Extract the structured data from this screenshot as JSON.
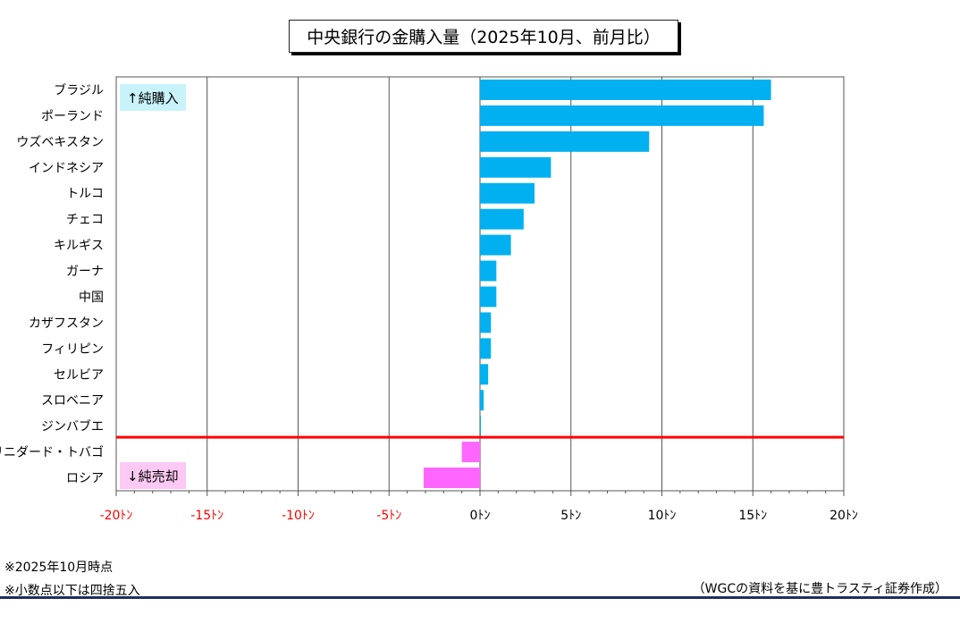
{
  "title": "中央銀行の金購入量（2025年10月、前月比）",
  "chart_data": {
    "type": "bar",
    "orientation": "horizontal",
    "title": "中央銀行の金購入量（2025年10月、前月比）",
    "categories": [
      "ブラジル",
      "ポーランド",
      "ウズベキスタン",
      "インドネシア",
      "トルコ",
      "チェコ",
      "キルギス",
      "ガーナ",
      "中国",
      "カザフスタン",
      "フィリピン",
      "セルビア",
      "スロベニア",
      "ジンバブエ",
      "トリニダード・トバゴ",
      "ロシア"
    ],
    "values": [
      16,
      15.6,
      9.3,
      3.9,
      3,
      2.4,
      1.7,
      0.9,
      0.9,
      0.6,
      0.6,
      0.45,
      0.2,
      0.05,
      -1,
      -3.1
    ],
    "xlim": [
      -20,
      20
    ],
    "ticks": [
      -20,
      -15,
      -10,
      -5,
      0,
      5,
      10,
      15,
      20
    ],
    "tick_labels": [
      "-20ﾄﾝ",
      "-15ﾄﾝ",
      "-10ﾄﾝ",
      "-5ﾄﾝ",
      "0ﾄﾝ",
      "5ﾄﾝ",
      "10ﾄﾝ",
      "15ﾄﾝ",
      "20ﾄﾝ"
    ],
    "grid": true,
    "positive_color": "#00b0f0",
    "negative_color": "#ff66ff",
    "divider_color": "#ff0000",
    "negative_tick_color": "#ff0000",
    "annotations": {
      "buy_label": "↑純購入",
      "sell_label": "↓純売却"
    }
  },
  "notes": [
    "※2025年10月時点",
    "※小数点以下は四捨五入"
  ],
  "source": "（WGCの資料を基に豊トラスティ証券作成）"
}
